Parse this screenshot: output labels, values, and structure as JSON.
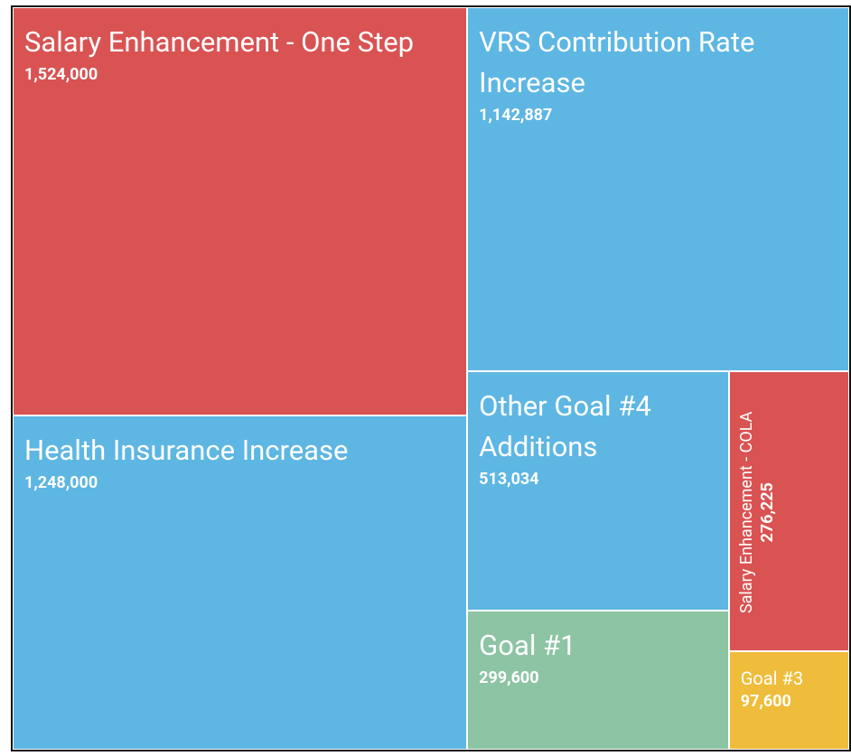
{
  "chart_data": {
    "type": "treemap",
    "categories": [
      "Salary Enhancement - One Step",
      "VRS Contribution Rate Increase",
      "Health Insurance Increase",
      "Other Goal #4 Additions",
      "Goal #1",
      "Salary Enhancement - COLA",
      "Goal #3"
    ],
    "values": [
      1524000,
      1142887,
      1248000,
      513034,
      299600,
      276225,
      97600
    ],
    "value_labels": [
      "1,524,000",
      "1,142,887",
      "1,248,000",
      "513,034",
      "299,600",
      "276,225",
      "97,600"
    ],
    "colors": [
      "#d95353",
      "#5eb6e3",
      "#5eb6e3",
      "#5eb6e3",
      "#8dc4a4",
      "#d95353",
      "#efbd3b"
    ]
  }
}
